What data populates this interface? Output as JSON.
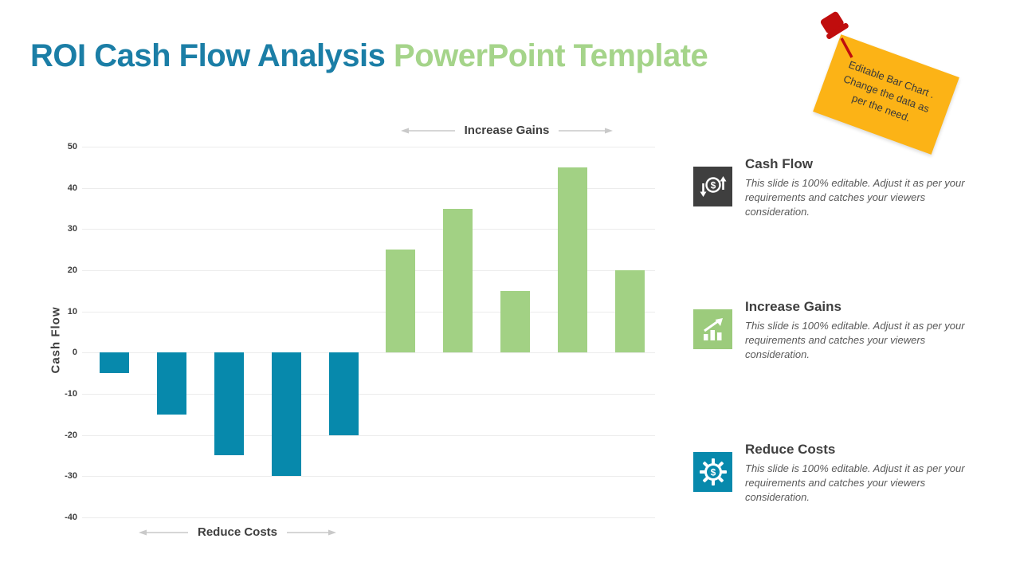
{
  "slide": {
    "title": {
      "primary": "ROI Cash Flow Analysis ",
      "secondary": "PowerPoint Template",
      "primary_color": "#1b7ea6",
      "secondary_color": "#a5d48a"
    },
    "note": {
      "line1": "Editable Bar Chart .",
      "line2": "Change the data as",
      "line3": "per the need.",
      "bg_color": "#fcb316",
      "pin_color": "#c00d0d"
    }
  },
  "chart_data": {
    "type": "bar",
    "ylabel": "Cash Flow",
    "ylim": [
      -40,
      50
    ],
    "yticks": [
      50,
      40,
      30,
      20,
      10,
      0,
      -10,
      -20,
      -30,
      -40
    ],
    "values": [
      -5,
      -15,
      -25,
      -30,
      -20,
      25,
      35,
      15,
      45,
      20
    ],
    "groups": [
      {
        "label": "Reduce Costs",
        "values": [
          -5,
          -15,
          -25,
          -30,
          -20
        ],
        "color": "#0789ac"
      },
      {
        "label": "Increase Gains",
        "values": [
          25,
          35,
          15,
          45,
          20
        ],
        "color": "#a2d184"
      }
    ],
    "grid": true,
    "legend": "none",
    "gridline_color": "#ececec",
    "arrow_color": "#c9c9c9"
  },
  "sidebar": {
    "items": [
      {
        "icon": "money-exchange-icon",
        "icon_bg": "#3f3f3f",
        "title": "Cash Flow",
        "body": "This slide is 100% editable. Adjust it as per your requirements and catches your viewers consideration."
      },
      {
        "icon": "growth-chart-icon",
        "icon_bg": "#9ccb7c",
        "title": "Increase Gains",
        "body": "This slide is 100% editable. Adjust it as per your requirements and catches your viewers consideration."
      },
      {
        "icon": "gear-dollar-icon",
        "icon_bg": "#0789ac",
        "title": "Reduce Costs",
        "body": "This slide is 100% editable. Adjust it as per your requirements and catches your viewers consideration."
      }
    ]
  }
}
